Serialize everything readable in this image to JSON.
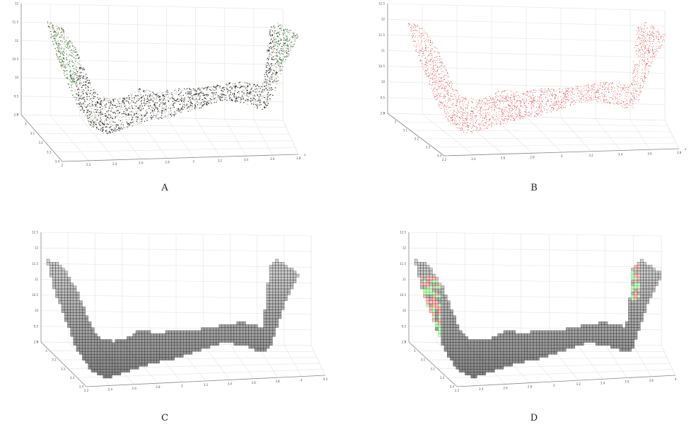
{
  "figure": {
    "panels": [
      {
        "label": "A",
        "z_ticks": [
          "9",
          "9.5",
          "10",
          "10.5",
          "11",
          "11.5",
          "12"
        ],
        "y_ticks": [
          "2.9",
          "3",
          "3.1",
          "3.2",
          "3.3",
          "3.4"
        ],
        "x_ticks": [
          "2",
          "2.2",
          "2.4",
          "2.6",
          "2.8",
          "3",
          "3.2",
          "3.4",
          "3.6",
          "3.8"
        ],
        "x_label": "x",
        "points": "mixed"
      },
      {
        "label": "B",
        "z_ticks": [
          "9",
          "9.5",
          "10",
          "10.5",
          "11",
          "11.5",
          "12",
          "12.5"
        ],
        "y_ticks": [
          "2.9",
          "3",
          "3.1",
          "3.2",
          "3.3",
          "3.4"
        ],
        "x_ticks": [
          "2.2",
          "2.4",
          "2.6",
          "2.8",
          "3",
          "3.2",
          "3.4",
          "3.6",
          "3.8"
        ],
        "x_label": "x",
        "points": "red"
      },
      {
        "label": "C",
        "z_ticks": [
          "9",
          "9.5",
          "10",
          "10.5",
          "11",
          "11.5",
          "12",
          "12.5"
        ],
        "y_ticks": [
          "2.9",
          "3",
          "3.1",
          "3.2",
          "3.3",
          "3.4"
        ],
        "x_ticks": [
          "2.2",
          "2.4",
          "2.6",
          "2.8",
          "3",
          "3.2",
          "3.4",
          "3.6",
          "3.8",
          "4",
          "4.2"
        ],
        "x_label": "",
        "points": "voxel"
      },
      {
        "label": "D",
        "z_ticks": [
          "9",
          "9.5",
          "10",
          "10.5",
          "11",
          "11.5",
          "12",
          "12.5"
        ],
        "y_ticks": [
          "2.9",
          "3",
          "3.1",
          "3.2",
          "3.3",
          "3.4"
        ],
        "x_ticks": [
          "2.2",
          "2.4",
          "2.6",
          "2.8",
          "3",
          "3.2",
          "3.4",
          "3.6",
          "3.8",
          "4"
        ],
        "x_label": "",
        "points": "voxel-colored"
      }
    ],
    "colors": {
      "grid": "#e4e4e4",
      "axis": "#888888",
      "dark_point": "#1e1e1e",
      "light_point": "#b8b2a6",
      "red_point": "#e02020",
      "green_point": "#2f7a2f",
      "bright_green": "#22dd22",
      "voxel": "#3a3a3a"
    }
  }
}
